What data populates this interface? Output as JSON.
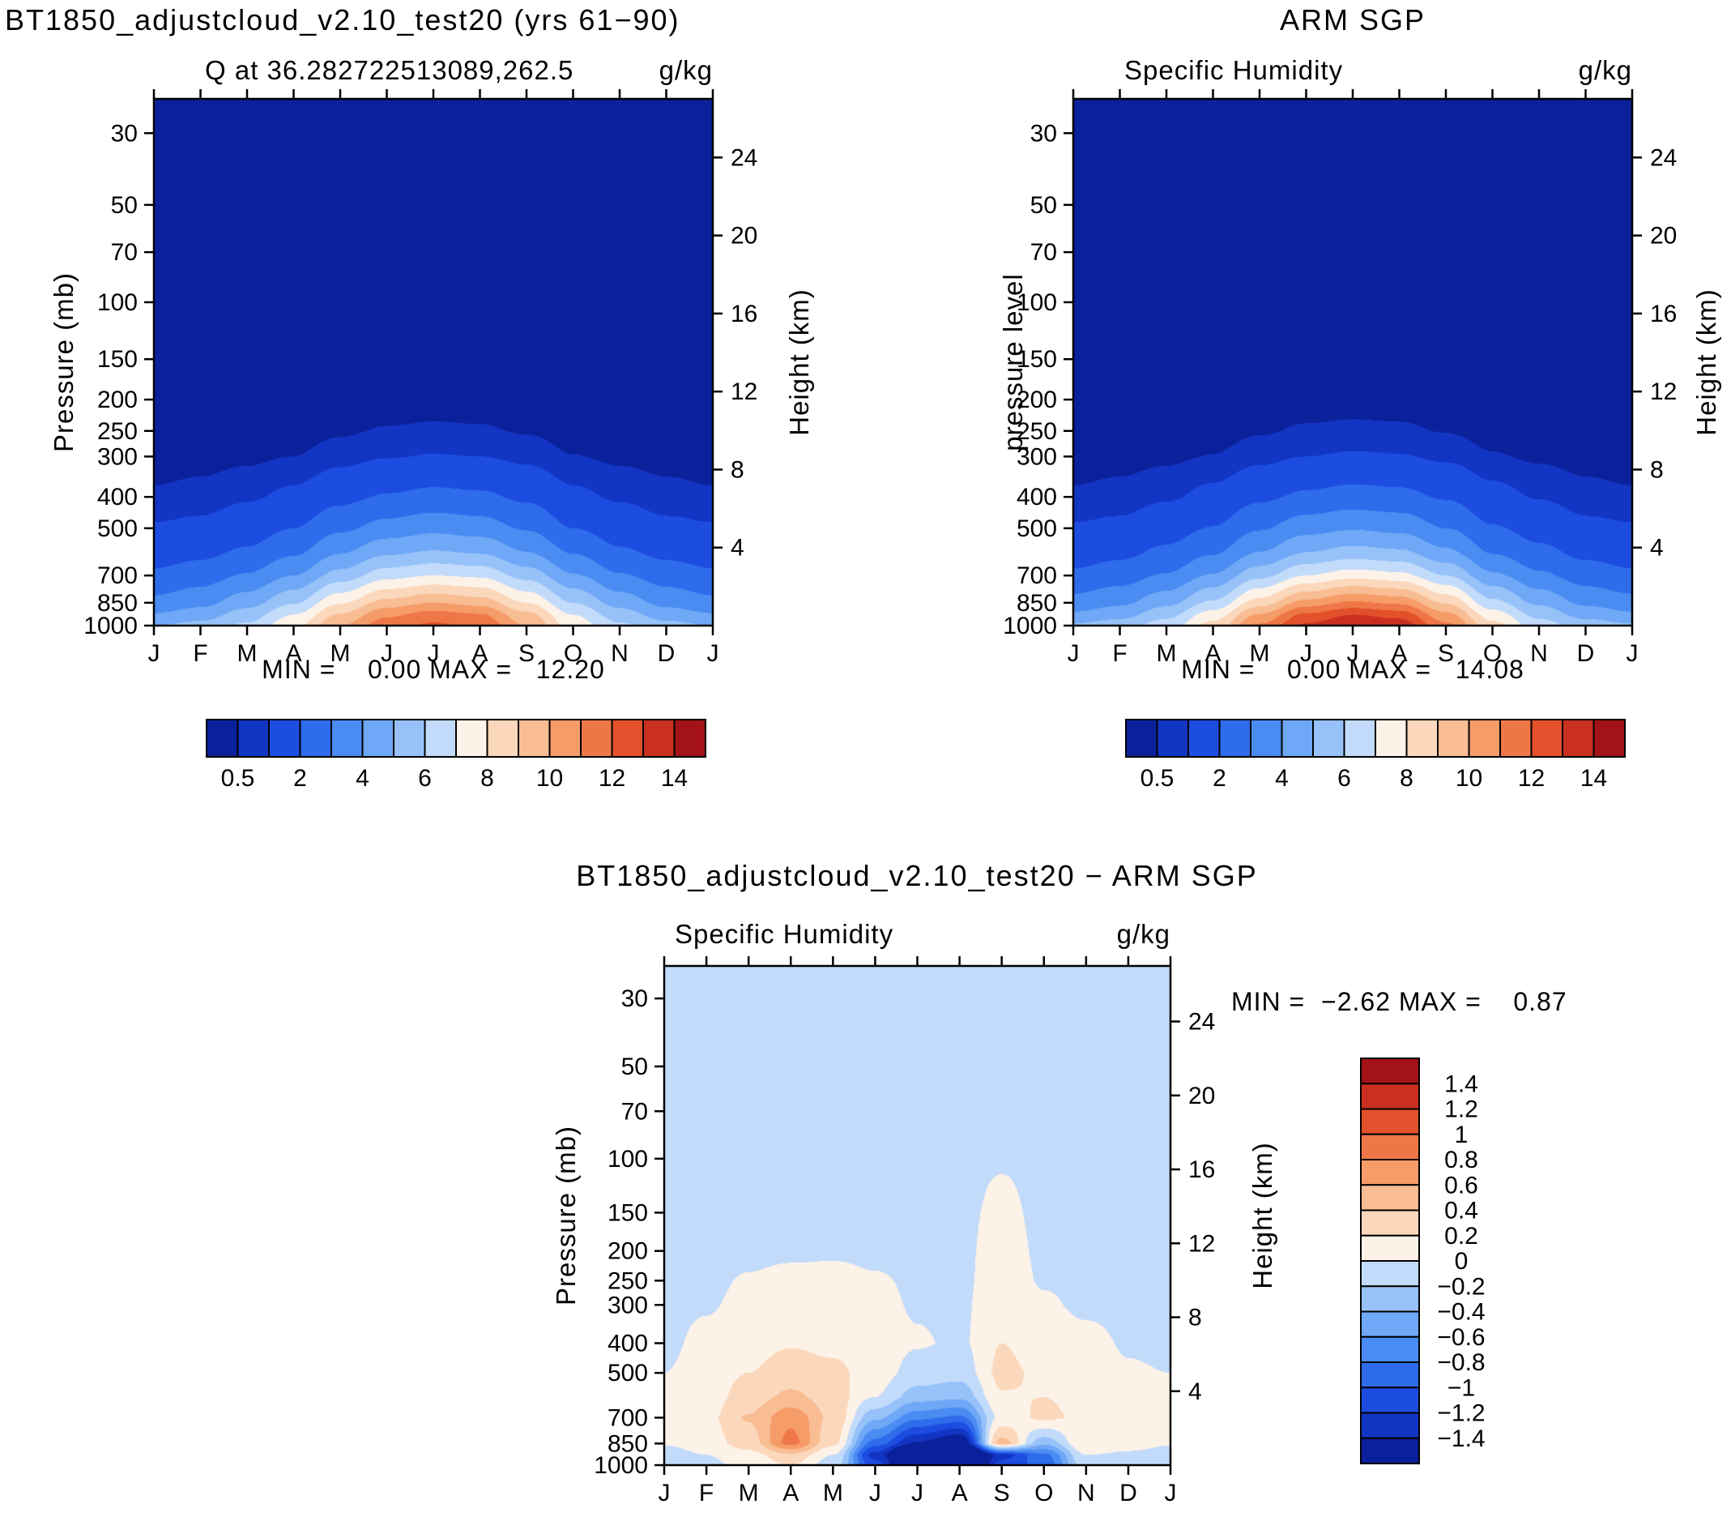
{
  "colors": {
    "palette": [
      "#0b219b",
      "#1335c4",
      "#1c4ce0",
      "#2e6cec",
      "#4a8cf2",
      "#6fa8f6",
      "#97c2f9",
      "#c2dbfb",
      "#fdf2e7",
      "#fbd8bb",
      "#f9bd93",
      "#f69c69",
      "#ef7747",
      "#e2512b",
      "#c93020",
      "#a31217"
    ],
    "frame": "#000000",
    "background": "#ffffff"
  },
  "chart_data": {
    "type": "heatmap",
    "description": "Pressure-month filled contour sections of specific humidity",
    "x_ticklabels": [
      "J",
      "F",
      "M",
      "A",
      "M",
      "J",
      "J",
      "A",
      "S",
      "O",
      "N",
      "D",
      "J"
    ],
    "pressure_ticks": [
      30,
      50,
      70,
      100,
      150,
      200,
      250,
      300,
      400,
      500,
      700,
      850,
      1000
    ],
    "height_ticks": [
      4,
      8,
      12,
      16,
      20,
      24
    ],
    "pressure_range_mb": [
      1000,
      23.5
    ],
    "grid_pressures": [
      30,
      50,
      100,
      150,
      200,
      250,
      300,
      400,
      500,
      600,
      700,
      850,
      925,
      1000
    ],
    "panels": [
      {
        "title": "BT1850_adjustcloud_v2.10_test20 (yrs 61−90)",
        "subtitle_left": "Q at 36.282722513089,262.5",
        "subtitle_right": "g/kg",
        "ylabel_left": "Pressure (mb)",
        "ylabel_right": "Height (km)",
        "min": 0.0,
        "max": 12.2,
        "stats_text": "MIN =    0.00 MAX =   12.20",
        "levels": [
          0.5,
          1,
          2,
          3,
          4,
          5,
          6,
          7,
          8,
          9,
          10,
          11,
          12,
          13,
          14
        ],
        "colorbar_labels": [
          "0.5",
          "2",
          "4",
          "6",
          "8",
          "10",
          "12",
          "14"
        ],
        "values": [
          [
            0,
            0,
            0,
            0,
            0,
            0,
            0,
            0,
            0,
            0,
            0,
            0,
            0
          ],
          [
            0,
            0,
            0,
            0,
            0,
            0,
            0,
            0,
            0,
            0,
            0,
            0,
            0
          ],
          [
            0.01,
            0.01,
            0.01,
            0.01,
            0.01,
            0.01,
            0.01,
            0.01,
            0.01,
            0.01,
            0.01,
            0.01,
            0.01
          ],
          [
            0.02,
            0.02,
            0.02,
            0.03,
            0.04,
            0.05,
            0.05,
            0.05,
            0.04,
            0.03,
            0.02,
            0.02,
            0.02
          ],
          [
            0.06,
            0.07,
            0.09,
            0.12,
            0.18,
            0.24,
            0.27,
            0.25,
            0.19,
            0.12,
            0.09,
            0.07,
            0.06
          ],
          [
            0.15,
            0.17,
            0.2,
            0.28,
            0.42,
            0.55,
            0.6,
            0.57,
            0.45,
            0.29,
            0.2,
            0.17,
            0.15
          ],
          [
            0.25,
            0.3,
            0.38,
            0.5,
            0.75,
            0.95,
            1.05,
            1.0,
            0.8,
            0.52,
            0.38,
            0.3,
            0.25
          ],
          [
            0.6,
            0.7,
            0.9,
            1.2,
            1.7,
            2.1,
            2.3,
            2.2,
            1.8,
            1.2,
            0.9,
            0.7,
            0.6
          ],
          [
            1.1,
            1.2,
            1.5,
            2.0,
            2.8,
            3.4,
            3.7,
            3.5,
            2.9,
            2.0,
            1.5,
            1.2,
            1.1
          ],
          [
            1.6,
            1.8,
            2.2,
            2.9,
            4.0,
            4.9,
            5.2,
            5.0,
            4.1,
            3.0,
            2.2,
            1.8,
            1.6
          ],
          [
            2.2,
            2.5,
            3.1,
            4.0,
            5.4,
            6.6,
            7.0,
            6.8,
            5.6,
            4.1,
            3.1,
            2.5,
            2.2
          ],
          [
            3.3,
            3.7,
            4.6,
            5.9,
            7.9,
            9.4,
            10.0,
            9.6,
            8.0,
            6.0,
            4.6,
            3.7,
            3.3
          ],
          [
            4.1,
            4.5,
            5.5,
            7.0,
            9.1,
            10.8,
            11.5,
            11.1,
            9.3,
            7.0,
            5.5,
            4.5,
            4.1
          ],
          [
            5.0,
            5.4,
            6.2,
            7.8,
            10.0,
            11.6,
            12.2,
            11.8,
            10.0,
            7.6,
            6.2,
            5.4,
            5.0
          ]
        ]
      },
      {
        "title": "ARM SGP",
        "subtitle_left": "Specific Humidity",
        "subtitle_right": "g/kg",
        "ylabel_left": "pressure level",
        "ylabel_right": "Height (km)",
        "min": 0.0,
        "max": 14.08,
        "stats_text": "MIN =    0.00 MAX =   14.08",
        "levels": [
          0.5,
          1,
          2,
          3,
          4,
          5,
          6,
          7,
          8,
          9,
          10,
          11,
          12,
          13,
          14
        ],
        "colorbar_labels": [
          "0.5",
          "2",
          "4",
          "6",
          "8",
          "10",
          "12",
          "14"
        ],
        "values": [
          [
            0,
            0,
            0,
            0,
            0,
            0,
            0,
            0,
            0,
            0,
            0,
            0,
            0
          ],
          [
            0,
            0,
            0,
            0,
            0,
            0,
            0,
            0,
            0,
            0,
            0,
            0,
            0
          ],
          [
            0.01,
            0.01,
            0.01,
            0.01,
            0.01,
            0.01,
            0.01,
            0.01,
            0.01,
            0.01,
            0.01,
            0.01,
            0.01
          ],
          [
            0.02,
            0.02,
            0.02,
            0.03,
            0.04,
            0.05,
            0.05,
            0.05,
            0.04,
            0.03,
            0.02,
            0.02,
            0.02
          ],
          [
            0.06,
            0.07,
            0.09,
            0.12,
            0.18,
            0.25,
            0.28,
            0.26,
            0.2,
            0.13,
            0.09,
            0.07,
            0.06
          ],
          [
            0.15,
            0.17,
            0.21,
            0.29,
            0.44,
            0.58,
            0.63,
            0.6,
            0.47,
            0.3,
            0.21,
            0.17,
            0.15
          ],
          [
            0.25,
            0.3,
            0.38,
            0.52,
            0.78,
            1.0,
            1.1,
            1.05,
            0.85,
            0.55,
            0.4,
            0.3,
            0.25
          ],
          [
            0.6,
            0.7,
            0.9,
            1.25,
            1.8,
            2.2,
            2.4,
            2.3,
            1.9,
            1.3,
            0.95,
            0.7,
            0.6
          ],
          [
            1.1,
            1.2,
            1.55,
            2.05,
            2.9,
            3.6,
            3.9,
            3.7,
            3.0,
            2.1,
            1.6,
            1.2,
            1.1
          ],
          [
            1.6,
            1.8,
            2.25,
            2.95,
            4.1,
            5.1,
            5.5,
            5.3,
            4.3,
            3.0,
            2.3,
            1.8,
            1.6
          ],
          [
            2.2,
            2.5,
            3.1,
            4.1,
            5.7,
            7.0,
            7.6,
            7.3,
            6.0,
            4.2,
            3.2,
            2.5,
            2.2
          ],
          [
            3.4,
            3.8,
            4.7,
            6.2,
            8.5,
            10.4,
            11.2,
            10.8,
            8.9,
            6.3,
            4.8,
            3.8,
            3.4
          ],
          [
            4.2,
            4.6,
            5.7,
            7.5,
            10.1,
            12.2,
            13.0,
            12.6,
            10.3,
            7.5,
            5.7,
            4.6,
            4.2
          ],
          [
            5.2,
            5.6,
            6.5,
            8.4,
            11.2,
            13.2,
            14.0,
            13.7,
            11.3,
            8.4,
            6.5,
            5.6,
            5.2
          ]
        ]
      },
      {
        "title": "BT1850_adjustcloud_v2.10_test20 − ARM SGP",
        "subtitle_left": "Specific Humidity",
        "subtitle_right": "g/kg",
        "ylabel_left": "Pressure (mb)",
        "ylabel_right": "Height (km)",
        "min": -2.62,
        "max": 0.87,
        "stats_text": "MIN =  −2.62 MAX =    0.87",
        "levels": [
          -1.4,
          -1.2,
          -1,
          -0.8,
          -0.6,
          -0.4,
          -0.2,
          0,
          0.2,
          0.4,
          0.6,
          0.8,
          1,
          1.2,
          1.4
        ],
        "colorbar_labels": [
          "1.4",
          "1.2",
          "1",
          "0.8",
          "0.6",
          "0.4",
          "0.2",
          "0",
          "−0.2",
          "−0.4",
          "−0.6",
          "−0.8",
          "−1",
          "−1.2",
          "−1.4"
        ],
        "values": [
          [
            -0.05,
            -0.05,
            -0.05,
            -0.05,
            -0.05,
            -0.05,
            -0.05,
            -0.05,
            -0.05,
            -0.05,
            -0.05,
            -0.05,
            -0.05
          ],
          [
            -0.05,
            -0.05,
            -0.05,
            -0.05,
            -0.05,
            -0.05,
            -0.05,
            -0.05,
            -0.05,
            -0.05,
            -0.05,
            -0.05,
            -0.05
          ],
          [
            -0.05,
            -0.05,
            -0.05,
            -0.05,
            -0.05,
            -0.05,
            -0.05,
            -0.05,
            -0.02,
            -0.05,
            -0.05,
            -0.05,
            -0.05
          ],
          [
            -0.06,
            -0.06,
            -0.06,
            -0.06,
            -0.05,
            -0.05,
            -0.05,
            -0.05,
            0.05,
            -0.05,
            -0.06,
            -0.06,
            -0.06
          ],
          [
            -0.06,
            -0.06,
            -0.05,
            -0.04,
            -0.03,
            -0.04,
            -0.05,
            -0.05,
            0.1,
            -0.04,
            -0.06,
            -0.06,
            -0.06
          ],
          [
            -0.06,
            -0.05,
            0.02,
            0.06,
            0.06,
            0.02,
            -0.03,
            -0.05,
            0.13,
            -0.02,
            -0.05,
            -0.06,
            -0.06
          ],
          [
            -0.05,
            -0.02,
            0.06,
            0.1,
            0.1,
            0.06,
            -0.02,
            -0.04,
            0.16,
            0.03,
            -0.04,
            -0.05,
            -0.05
          ],
          [
            -0.04,
            0.05,
            0.13,
            0.18,
            0.15,
            0.1,
            0.02,
            -0.03,
            0.2,
            0.1,
            0.06,
            -0.02,
            -0.04
          ],
          [
            0.0,
            0.08,
            0.2,
            0.3,
            0.25,
            0.1,
            -0.08,
            -0.12,
            0.25,
            0.16,
            0.1,
            0.02,
            0.0
          ],
          [
            0.03,
            0.1,
            0.3,
            0.45,
            0.3,
            0.0,
            -0.3,
            -0.35,
            0.18,
            0.2,
            0.12,
            0.05,
            0.03
          ],
          [
            0.05,
            0.15,
            0.42,
            0.75,
            0.35,
            -0.35,
            -0.75,
            -0.85,
            0.05,
            0.25,
            0.15,
            0.08,
            0.05
          ],
          [
            0.02,
            0.1,
            0.3,
            0.87,
            0.25,
            -0.9,
            -1.45,
            -1.7,
            0.5,
            -0.35,
            0.2,
            0.1,
            0.02
          ],
          [
            -0.1,
            0.0,
            0.12,
            0.35,
            0.0,
            -1.3,
            -2.3,
            -2.62,
            -1.3,
            -0.85,
            0.0,
            -0.05,
            -0.1
          ],
          [
            -0.15,
            -0.05,
            0.05,
            0.2,
            -0.12,
            -1.1,
            -2.1,
            -2.4,
            -1.1,
            -0.95,
            -0.1,
            -0.1,
            -0.15
          ]
        ]
      }
    ]
  }
}
